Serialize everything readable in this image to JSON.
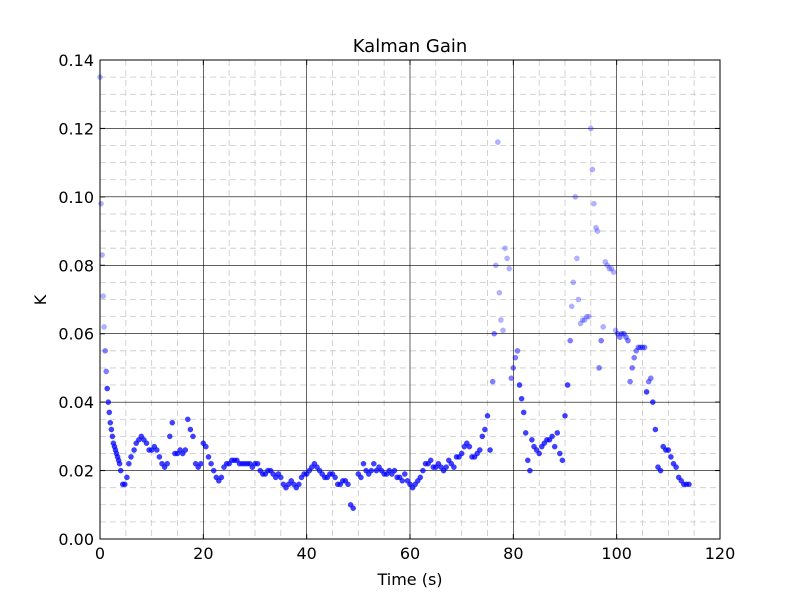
{
  "chart_data": {
    "type": "scatter",
    "title": "Kalman Gain",
    "xlabel": "Time (s)",
    "ylabel": "K",
    "xlim": [
      0,
      120
    ],
    "ylim": [
      0,
      0.14
    ],
    "x_ticks": [
      0,
      20,
      40,
      60,
      80,
      100,
      120
    ],
    "x_tick_labels": [
      "0",
      "20",
      "40",
      "60",
      "80",
      "100",
      "120"
    ],
    "y_ticks": [
      0,
      0.02,
      0.04,
      0.06,
      0.08,
      0.1,
      0.12,
      0.14
    ],
    "y_tick_labels": [
      "0.00",
      "0.02",
      "0.04",
      "0.06",
      "0.08",
      "0.10",
      "0.12",
      "0.14"
    ],
    "grid": true,
    "minor_grid": true,
    "marker_color": "#0000ff",
    "series": [
      {
        "x": [
          0.0,
          0.2,
          0.4,
          0.6,
          0.8,
          1.0,
          1.2,
          1.4,
          1.6,
          1.8,
          2.0,
          2.2,
          2.4,
          2.6,
          2.8,
          3.0,
          3.2,
          3.4,
          3.6,
          3.8,
          4.0,
          4.4,
          4.8,
          5.2,
          5.6,
          6.0,
          6.6,
          7.0,
          7.5,
          8.0,
          8.5,
          9.0,
          9.5,
          10.0,
          10.5,
          11.0,
          11.5,
          12.0,
          12.5,
          13.0,
          13.5,
          14.0,
          14.5,
          15.0,
          15.5,
          16.0,
          16.5,
          17.0,
          17.5,
          18.0,
          18.5,
          19.0,
          19.5,
          20.0,
          20.5,
          21.0,
          21.5,
          22.0,
          22.5,
          23.0,
          23.5,
          24.0,
          24.5,
          25.0,
          25.5,
          26.0,
          26.5,
          27.0,
          27.5,
          28.0,
          28.5,
          29.0,
          29.5,
          30.0,
          30.5,
          31.0,
          31.5,
          32.0,
          32.5,
          33.0,
          33.5,
          34.0,
          34.5,
          35.0,
          35.5,
          36.0,
          36.5,
          37.0,
          37.5,
          38.0,
          38.5,
          39.0,
          39.5,
          40.0,
          40.5,
          41.0,
          41.5,
          42.0,
          42.5,
          43.0,
          43.5,
          44.0,
          44.5,
          45.0,
          45.5,
          46.0,
          46.5,
          47.0,
          47.5,
          48.0,
          48.5,
          49.0,
          50.0,
          50.5,
          51.0,
          51.5,
          52.0,
          52.5,
          53.0,
          53.5,
          54.0,
          54.5,
          55.0,
          55.5,
          56.0,
          56.5,
          57.0,
          57.5,
          58.0,
          58.5,
          59.0,
          59.5,
          60.0,
          60.5,
          61.0,
          61.5,
          62.0,
          62.5,
          63.0,
          63.5,
          64.0,
          64.5,
          65.0,
          65.5,
          66.0,
          66.5,
          67.0,
          67.5,
          68.0,
          68.5,
          69.0,
          69.5,
          70.0,
          70.5,
          71.0,
          71.5,
          72.0,
          72.5,
          73.0,
          73.5,
          74.0,
          74.5,
          75.0,
          75.5,
          76.0,
          76.3,
          76.6,
          77.0,
          77.3,
          77.6,
          78.0,
          78.4,
          78.8,
          79.2,
          79.6,
          80.0,
          80.4,
          80.8,
          81.2,
          81.6,
          82.0,
          82.4,
          82.8,
          83.2,
          83.6,
          84.0,
          84.5,
          85.0,
          85.5,
          86.0,
          86.5,
          87.0,
          87.5,
          88.0,
          88.5,
          89.0,
          89.5,
          90.0,
          90.5,
          91.0,
          91.3,
          91.6,
          92.0,
          92.3,
          92.6,
          93.0,
          93.4,
          93.8,
          94.2,
          94.6,
          95.0,
          95.3,
          95.6,
          96.0,
          96.3,
          96.6,
          97.0,
          97.4,
          97.8,
          98.2,
          98.6,
          99.0,
          99.4,
          99.8,
          100.2,
          100.6,
          101.0,
          101.4,
          101.8,
          102.2,
          102.6,
          103.0,
          103.4,
          103.8,
          104.2,
          104.6,
          105.0,
          105.4,
          105.8,
          106.2,
          106.6,
          107.0,
          107.5,
          108.0,
          108.5,
          109.0,
          109.5,
          110.0,
          110.5,
          111.0,
          111.5,
          112.0,
          112.5,
          113.0,
          113.5,
          114.0
        ],
        "y": [
          0.135,
          0.098,
          0.083,
          0.071,
          0.062,
          0.055,
          0.049,
          0.044,
          0.04,
          0.037,
          0.034,
          0.032,
          0.03,
          0.028,
          0.027,
          0.026,
          0.025,
          0.024,
          0.023,
          0.022,
          0.02,
          0.016,
          0.016,
          0.018,
          0.022,
          0.024,
          0.026,
          0.028,
          0.029,
          0.03,
          0.029,
          0.028,
          0.026,
          0.026,
          0.027,
          0.026,
          0.024,
          0.022,
          0.021,
          0.022,
          0.03,
          0.034,
          0.025,
          0.025,
          0.026,
          0.025,
          0.026,
          0.035,
          0.032,
          0.03,
          0.022,
          0.021,
          0.022,
          0.028,
          0.027,
          0.024,
          0.022,
          0.02,
          0.018,
          0.017,
          0.018,
          0.021,
          0.022,
          0.022,
          0.023,
          0.023,
          0.023,
          0.022,
          0.022,
          0.022,
          0.022,
          0.022,
          0.021,
          0.022,
          0.022,
          0.02,
          0.019,
          0.019,
          0.02,
          0.02,
          0.019,
          0.018,
          0.019,
          0.018,
          0.016,
          0.015,
          0.016,
          0.017,
          0.016,
          0.015,
          0.016,
          0.018,
          0.019,
          0.019,
          0.02,
          0.021,
          0.022,
          0.021,
          0.02,
          0.019,
          0.018,
          0.018,
          0.019,
          0.019,
          0.018,
          0.016,
          0.016,
          0.017,
          0.017,
          0.016,
          0.01,
          0.009,
          0.019,
          0.018,
          0.022,
          0.02,
          0.019,
          0.02,
          0.022,
          0.02,
          0.021,
          0.02,
          0.019,
          0.019,
          0.02,
          0.019,
          0.02,
          0.018,
          0.018,
          0.017,
          0.019,
          0.017,
          0.016,
          0.015,
          0.016,
          0.017,
          0.018,
          0.02,
          0.022,
          0.022,
          0.023,
          0.021,
          0.021,
          0.022,
          0.021,
          0.02,
          0.021,
          0.023,
          0.022,
          0.021,
          0.024,
          0.024,
          0.025,
          0.027,
          0.028,
          0.027,
          0.024,
          0.024,
          0.025,
          0.026,
          0.03,
          0.032,
          0.036,
          0.026,
          0.046,
          0.06,
          0.08,
          0.116,
          0.072,
          0.064,
          0.061,
          0.085,
          0.082,
          0.079,
          0.047,
          0.05,
          0.053,
          0.055,
          0.045,
          0.041,
          0.037,
          0.031,
          0.023,
          0.02,
          0.029,
          0.027,
          0.026,
          0.025,
          0.027,
          0.028,
          0.029,
          0.029,
          0.03,
          0.027,
          0.031,
          0.025,
          0.023,
          0.036,
          0.045,
          0.058,
          0.068,
          0.075,
          0.1,
          0.082,
          0.07,
          0.063,
          0.064,
          0.064,
          0.065,
          0.065,
          0.12,
          0.108,
          0.098,
          0.091,
          0.09,
          0.05,
          0.058,
          0.062,
          0.081,
          0.08,
          0.079,
          0.079,
          0.078,
          0.061,
          0.06,
          0.059,
          0.06,
          0.06,
          0.059,
          0.058,
          0.046,
          0.05,
          0.053,
          0.055,
          0.056,
          0.056,
          0.056,
          0.056,
          0.043,
          0.046,
          0.047,
          0.04,
          0.032,
          0.021,
          0.02,
          0.027,
          0.026,
          0.026,
          0.024,
          0.022,
          0.021,
          0.018,
          0.017,
          0.016,
          0.016,
          0.016
        ]
      }
    ]
  }
}
